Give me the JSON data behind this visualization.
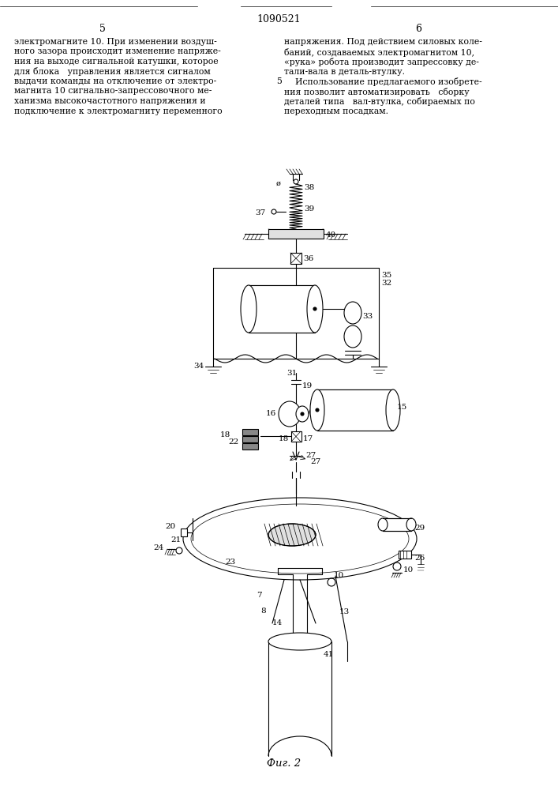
{
  "page_number_center": "1090521",
  "page_col_left": "5",
  "page_col_right": "6",
  "text_left_lines": [
    "электромагните 10. При изменении воздуш-",
    "ного зазора происходит изменение напряже-",
    "ния на выходе сигнальной катушки, которое",
    "для блока   управления является сигналом",
    "выдачи команды на отключение от электро-",
    "магнита 10 сигнально-запрессовочного ме-",
    "ханизма высокочастотного напряжения и",
    "подключение к электромагниту переменного"
  ],
  "text_right_lines": [
    "напряжения. Под действием силовых коле-",
    "баний, создаваемых электромагнитом 10,",
    "«рука» робота производит запрессовку де-",
    "тали-вала в деталь-втулку.",
    "    Использование предлагаемого изобрете-",
    "ния позволит автоматизировать   сборку",
    "деталей типа   вал-втулка, собираемых по",
    "переходным посадкам."
  ],
  "fig_label": "Фиг. 2",
  "bg_color": "#ffffff",
  "line_color": "#000000",
  "lw": 0.8,
  "tlw": 0.5
}
